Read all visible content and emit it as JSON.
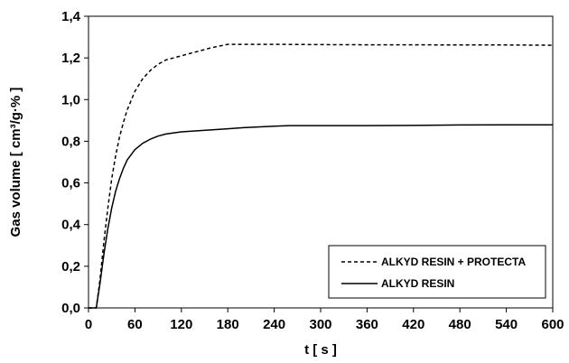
{
  "chart_data": {
    "type": "line",
    "xlabel": "t [ s ]",
    "ylabel": "Gas   volume  [ cm³/g·% ]",
    "xlim": [
      0,
      600
    ],
    "ylim": [
      0,
      1.4
    ],
    "xticks": [
      0,
      60,
      120,
      180,
      240,
      300,
      360,
      420,
      480,
      540,
      600
    ],
    "xtick_labels": [
      "0",
      "60",
      "120",
      "180",
      "240",
      "300",
      "360",
      "420",
      "480",
      "540",
      "600"
    ],
    "yticks": [
      0,
      0.2,
      0.4,
      0.6,
      0.8,
      1.0,
      1.2,
      1.4
    ],
    "ytick_labels": [
      "0,0",
      "0,2",
      "0,4",
      "0,6",
      "0,8",
      "1,0",
      "1,2",
      "1,4"
    ],
    "grid": false,
    "legend_position": "bottom-right",
    "series": [
      {
        "name": "ALKYD RESIN + PROTECTA",
        "style": "dashed",
        "color": "#000000",
        "x": [
          0,
          10,
          15,
          20,
          25,
          30,
          35,
          40,
          45,
          50,
          60,
          70,
          80,
          90,
          100,
          120,
          140,
          160,
          180,
          200,
          240,
          300,
          360,
          420,
          480,
          540,
          600
        ],
        "y": [
          0,
          0,
          0.14,
          0.32,
          0.48,
          0.62,
          0.73,
          0.82,
          0.89,
          0.95,
          1.04,
          1.1,
          1.14,
          1.17,
          1.19,
          1.21,
          1.23,
          1.25,
          1.265,
          1.265,
          1.265,
          1.264,
          1.263,
          1.263,
          1.262,
          1.262,
          1.261
        ]
      },
      {
        "name": "ALKYD  RESIN",
        "style": "solid",
        "color": "#000000",
        "x": [
          0,
          10,
          15,
          20,
          25,
          30,
          35,
          40,
          45,
          50,
          60,
          70,
          80,
          90,
          100,
          120,
          140,
          160,
          180,
          200,
          240,
          260,
          300,
          360,
          420,
          480,
          540,
          600
        ],
        "y": [
          0,
          0,
          0.12,
          0.26,
          0.38,
          0.48,
          0.56,
          0.62,
          0.67,
          0.71,
          0.76,
          0.79,
          0.81,
          0.825,
          0.835,
          0.845,
          0.85,
          0.855,
          0.86,
          0.865,
          0.872,
          0.875,
          0.875,
          0.875,
          0.876,
          0.878,
          0.879,
          0.879
        ]
      }
    ]
  }
}
